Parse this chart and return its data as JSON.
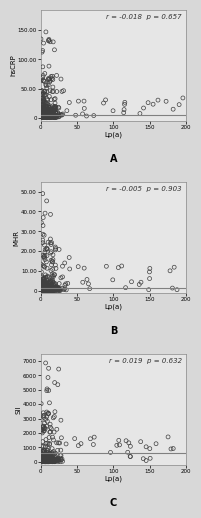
{
  "panels": [
    {
      "label": "A",
      "xlabel": "Lp(a)",
      "ylabel": "hsCRP",
      "corr_text": "r = -0.018  p = 0.657",
      "xlim": [
        0,
        200
      ],
      "ylim": [
        -5,
        185
      ],
      "ytick_vals": [
        0,
        50,
        100,
        150
      ],
      "ytick_labels": [
        "0",
        "50.00",
        "100.00",
        "150.00"
      ],
      "xtick_vals": [
        0,
        50,
        100,
        150,
        200
      ],
      "xtick_labels": [
        "0",
        "50",
        "100",
        "150",
        "200"
      ],
      "hline_y": 4.5,
      "seed": 1,
      "n_dense": 420,
      "n_medium": 60,
      "n_sparse": 30
    },
    {
      "label": "B",
      "xlabel": "Lp(a)",
      "ylabel": "MHR",
      "corr_text": "r = -0.005  p = 0.903",
      "xlim": [
        0,
        200
      ],
      "ylim": [
        -1,
        55
      ],
      "ytick_vals": [
        0,
        10,
        20,
        30,
        40,
        50
      ],
      "ytick_labels": [
        "0",
        "10.00",
        "20.00",
        "30.00",
        "40.00",
        "50.00"
      ],
      "xtick_vals": [
        0,
        50,
        100,
        150,
        200
      ],
      "xtick_labels": [
        "0",
        "50",
        "100",
        "150",
        "200"
      ],
      "hline_y": 1.5,
      "seed": 2,
      "n_dense": 420,
      "n_medium": 60,
      "n_sparse": 30
    },
    {
      "label": "C",
      "xlabel": "Lp(a)",
      "ylabel": "SII",
      "corr_text": "r = 0.019  p = 0.632",
      "xlim": [
        0,
        200
      ],
      "ylim": [
        -200,
        7500
      ],
      "ytick_vals": [
        0,
        1000,
        2000,
        3000,
        4000,
        5000,
        6000,
        7000
      ],
      "ytick_labels": [
        "0",
        "1000",
        "2000",
        "3000",
        "4000",
        "5000",
        "6000",
        "7000"
      ],
      "xtick_vals": [
        0,
        50,
        100,
        150,
        200
      ],
      "xtick_labels": [
        "0",
        "50",
        "100",
        "150",
        "200"
      ],
      "hline_y": 600,
      "seed": 3,
      "n_dense": 420,
      "n_medium": 60,
      "n_sparse": 30
    }
  ],
  "bg_color": "#e6e6e6",
  "plot_bg": "#e6e6e6",
  "marker_color": "#404040",
  "marker_size": 8,
  "marker_linewidth": 0.5,
  "hline_color": "#808080",
  "hline_lw": 0.8,
  "fig_bg": "#d8d8d8",
  "corr_fontsize": 5.0,
  "label_fontsize": 7,
  "tick_fontsize": 4.0,
  "axis_label_fontsize": 5.0
}
